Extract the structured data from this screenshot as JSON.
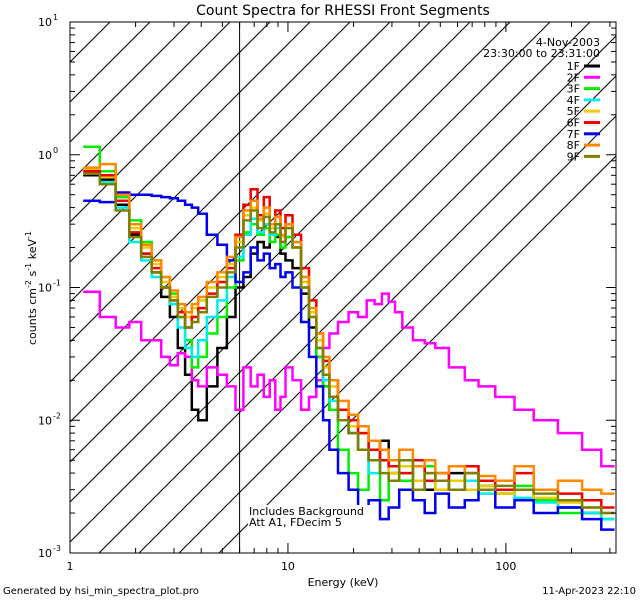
{
  "chart_data": {
    "type": "line",
    "title": "Count Spectra for RHESSI Front Segments",
    "xlabel": "Energy (keV)",
    "ylabel_parts": [
      "counts cm",
      "-2",
      " s",
      "-1",
      " keV",
      "-1"
    ],
    "xscale": "log",
    "yscale": "log",
    "xlim": [
      1,
      320
    ],
    "ylim": [
      0.001,
      10
    ],
    "x_ticks": [
      {
        "v": 1,
        "label": "1"
      },
      {
        "v": 10,
        "label": "10"
      },
      {
        "v": 100,
        "label": "100"
      }
    ],
    "y_ticks": [
      {
        "v": 10,
        "base": "10",
        "exp": "1"
      },
      {
        "v": 1,
        "base": "10",
        "exp": "0"
      },
      {
        "v": 0.1,
        "base": "10",
        "exp": "-1"
      },
      {
        "v": 0.01,
        "base": "10",
        "exp": "-2"
      },
      {
        "v": 0.001,
        "base": "10",
        "exp": "-3"
      }
    ],
    "excluded_region": [
      1,
      6
    ],
    "date": "4-Nov-2003",
    "time_range": "23:30:00 to 23:31:00",
    "annotations": [
      "Includes Background",
      "Att A1, FDecim  5"
    ],
    "footer_left": "Generated by hsi_min_spectra_plot.pro",
    "footer_right": "11-Apr-2023 22:10",
    "series": [
      {
        "name": "1F",
        "color": "#000000",
        "x": [
          1.25,
          1.5,
          1.75,
          2.0,
          2.25,
          2.5,
          2.75,
          3.0,
          3.25,
          3.5,
          3.75,
          4.0,
          4.5,
          5.0,
          5.5,
          6.0,
          6.5,
          7.0,
          7.5,
          8.0,
          8.5,
          9.0,
          9.5,
          10,
          11,
          12,
          13,
          14,
          15,
          16,
          18,
          20,
          22,
          25,
          28,
          30,
          35,
          40,
          45,
          50,
          60,
          70,
          80,
          100,
          120,
          150,
          200,
          250,
          300
        ],
        "y": [
          0.7,
          0.65,
          0.42,
          0.25,
          0.18,
          0.13,
          0.085,
          0.06,
          0.035,
          0.022,
          0.012,
          0.01,
          0.018,
          0.035,
          0.06,
          0.1,
          0.12,
          0.18,
          0.22,
          0.2,
          0.28,
          0.24,
          0.18,
          0.16,
          0.14,
          0.09,
          0.05,
          0.03,
          0.018,
          0.012,
          0.01,
          0.008,
          0.006,
          0.005,
          0.007,
          0.004,
          0.0035,
          0.0045,
          0.003,
          0.0035,
          0.004,
          0.003,
          0.0032,
          0.0028,
          0.003,
          0.0025,
          0.0022,
          0.002,
          0.0018
        ]
      },
      {
        "name": "2F",
        "color": "#ff00ff",
        "x": [
          1.25,
          1.5,
          1.75,
          2.0,
          2.25,
          2.5,
          2.75,
          3.0,
          3.25,
          3.5,
          3.75,
          4.0,
          4.5,
          5.0,
          5.5,
          6.0,
          6.5,
          7.0,
          7.5,
          8.0,
          8.5,
          9.0,
          9.5,
          10,
          11,
          12,
          13,
          14,
          15,
          16,
          18,
          20,
          22,
          24,
          26,
          28,
          30,
          32,
          35,
          40,
          45,
          50,
          60,
          70,
          80,
          100,
          120,
          150,
          200,
          250,
          300
        ],
        "y": [
          0.093,
          0.06,
          0.05,
          0.055,
          0.04,
          0.04,
          0.03,
          0.026,
          0.032,
          0.03,
          0.02,
          0.018,
          0.025,
          0.022,
          0.018,
          0.012,
          0.025,
          0.018,
          0.022,
          0.015,
          0.02,
          0.012,
          0.015,
          0.025,
          0.02,
          0.012,
          0.015,
          0.02,
          0.035,
          0.045,
          0.055,
          0.065,
          0.06,
          0.08,
          0.075,
          0.09,
          0.078,
          0.065,
          0.05,
          0.04,
          0.038,
          0.035,
          0.025,
          0.02,
          0.018,
          0.015,
          0.012,
          0.01,
          0.008,
          0.006,
          0.0045
        ]
      },
      {
        "name": "3F",
        "color": "#00ee00",
        "x": [
          1.25,
          1.5,
          1.75,
          2.0,
          2.25,
          2.5,
          2.75,
          3.0,
          3.25,
          3.5,
          3.75,
          4.0,
          4.5,
          5.0,
          5.5,
          6.0,
          6.5,
          7.0,
          7.5,
          8.0,
          8.5,
          9.0,
          9.5,
          10,
          11,
          12,
          13,
          14,
          15,
          16,
          18,
          20,
          22,
          25,
          28,
          30,
          35,
          40,
          45,
          50,
          60,
          70,
          80,
          100,
          120,
          150,
          200,
          250,
          300
        ],
        "y": [
          1.15,
          0.75,
          0.48,
          0.32,
          0.22,
          0.16,
          0.12,
          0.09,
          0.06,
          0.04,
          0.025,
          0.03,
          0.045,
          0.06,
          0.1,
          0.16,
          0.26,
          0.3,
          0.25,
          0.28,
          0.22,
          0.25,
          0.2,
          0.24,
          0.2,
          0.1,
          0.06,
          0.03,
          0.018,
          0.012,
          0.006,
          0.004,
          0.003,
          0.005,
          0.0025,
          0.004,
          0.0035,
          0.003,
          0.0045,
          0.0035,
          0.003,
          0.004,
          0.003,
          0.0028,
          0.0032,
          0.0025,
          0.002,
          0.0022,
          0.0018
        ]
      },
      {
        "name": "4F",
        "color": "#00eeee",
        "x": [
          1.25,
          1.5,
          1.75,
          2.0,
          2.25,
          2.5,
          2.75,
          3.0,
          3.25,
          3.5,
          3.75,
          4.0,
          4.5,
          5.0,
          5.5,
          6.0,
          6.5,
          7.0,
          7.5,
          8.0,
          8.5,
          9.0,
          9.5,
          10,
          11,
          12,
          13,
          14,
          15,
          16,
          18,
          20,
          22,
          25,
          28,
          30,
          35,
          40,
          45,
          50,
          60,
          70,
          80,
          100,
          120,
          150,
          200,
          250,
          300
        ],
        "y": [
          0.72,
          0.62,
          0.4,
          0.22,
          0.16,
          0.12,
          0.1,
          0.075,
          0.05,
          0.035,
          0.03,
          0.04,
          0.06,
          0.08,
          0.12,
          0.17,
          0.25,
          0.33,
          0.26,
          0.3,
          0.25,
          0.28,
          0.22,
          0.3,
          0.22,
          0.12,
          0.07,
          0.035,
          0.02,
          0.014,
          0.01,
          0.008,
          0.006,
          0.004,
          0.005,
          0.0035,
          0.004,
          0.003,
          0.0035,
          0.004,
          0.003,
          0.0035,
          0.0028,
          0.003,
          0.0026,
          0.0024,
          0.0022,
          0.002,
          0.0018
        ]
      },
      {
        "name": "5F",
        "color": "#eecc00",
        "x": [
          1.25,
          1.5,
          1.75,
          2.0,
          2.25,
          2.5,
          2.75,
          3.0,
          3.25,
          3.5,
          3.75,
          4.0,
          4.5,
          5.0,
          5.5,
          6.0,
          6.5,
          7.0,
          7.5,
          8.0,
          8.5,
          9.0,
          9.5,
          10,
          11,
          12,
          13,
          14,
          15,
          16,
          18,
          20,
          22,
          25,
          28,
          30,
          35,
          40,
          45,
          50,
          60,
          70,
          80,
          100,
          120,
          150,
          200,
          250,
          300
        ],
        "y": [
          0.78,
          0.68,
          0.45,
          0.28,
          0.2,
          0.15,
          0.11,
          0.085,
          0.07,
          0.06,
          0.07,
          0.08,
          0.1,
          0.12,
          0.15,
          0.22,
          0.35,
          0.4,
          0.32,
          0.36,
          0.28,
          0.3,
          0.24,
          0.28,
          0.2,
          0.11,
          0.065,
          0.04,
          0.025,
          0.018,
          0.012,
          0.009,
          0.008,
          0.006,
          0.005,
          0.004,
          0.0045,
          0.0035,
          0.004,
          0.003,
          0.0035,
          0.003,
          0.0032,
          0.0028,
          0.003,
          0.0026,
          0.0024,
          0.0022,
          0.002
        ]
      },
      {
        "name": "6F",
        "color": "#ee0000",
        "x": [
          1.25,
          1.5,
          1.75,
          2.0,
          2.25,
          2.5,
          2.75,
          3.0,
          3.25,
          3.5,
          3.75,
          4.0,
          4.5,
          5.0,
          5.5,
          6.0,
          6.5,
          7.0,
          7.5,
          8.0,
          8.5,
          9.0,
          9.5,
          10,
          11,
          12,
          13,
          14,
          15,
          16,
          18,
          20,
          22,
          25,
          28,
          30,
          35,
          40,
          45,
          50,
          60,
          70,
          80,
          100,
          120,
          150,
          200,
          250,
          300
        ],
        "y": [
          0.75,
          0.7,
          0.45,
          0.26,
          0.18,
          0.14,
          0.1,
          0.08,
          0.065,
          0.05,
          0.06,
          0.07,
          0.09,
          0.11,
          0.14,
          0.25,
          0.42,
          0.55,
          0.35,
          0.48,
          0.3,
          0.38,
          0.28,
          0.35,
          0.25,
          0.14,
          0.08,
          0.045,
          0.028,
          0.02,
          0.012,
          0.01,
          0.008,
          0.006,
          0.005,
          0.0045,
          0.004,
          0.005,
          0.0035,
          0.004,
          0.003,
          0.0045,
          0.0035,
          0.003,
          0.004,
          0.003,
          0.0028,
          0.0025,
          0.0022
        ]
      },
      {
        "name": "7F",
        "color": "#0000ee",
        "x": [
          1.25,
          1.5,
          1.75,
          2.0,
          2.25,
          2.5,
          2.75,
          3.0,
          3.25,
          3.5,
          3.75,
          4.0,
          4.5,
          5.0,
          5.5,
          6.0,
          6.5,
          7.0,
          7.5,
          8.0,
          8.5,
          9.0,
          9.5,
          10,
          11,
          12,
          13,
          14,
          15,
          16,
          18,
          20,
          22,
          25,
          28,
          30,
          35,
          40,
          45,
          50,
          60,
          70,
          80,
          100,
          120,
          150,
          200,
          250,
          300
        ],
        "y": [
          0.45,
          0.44,
          0.52,
          0.5,
          0.5,
          0.49,
          0.48,
          0.47,
          0.45,
          0.42,
          0.4,
          0.36,
          0.25,
          0.21,
          0.16,
          0.11,
          0.13,
          0.2,
          0.16,
          0.18,
          0.14,
          0.15,
          0.12,
          0.13,
          0.1,
          0.055,
          0.03,
          0.018,
          0.01,
          0.006,
          0.004,
          0.003,
          0.002,
          0.0025,
          0.0018,
          0.0022,
          0.003,
          0.0025,
          0.002,
          0.0028,
          0.0022,
          0.0025,
          0.003,
          0.0022,
          0.0025,
          0.002,
          0.0022,
          0.0018,
          0.0015
        ]
      },
      {
        "name": "8F",
        "color": "#ff8800",
        "x": [
          1.25,
          1.5,
          1.75,
          2.0,
          2.25,
          2.5,
          2.75,
          3.0,
          3.25,
          3.5,
          3.75,
          4.0,
          4.5,
          5.0,
          5.5,
          6.0,
          6.5,
          7.0,
          7.5,
          8.0,
          8.5,
          9.0,
          9.5,
          10,
          11,
          12,
          13,
          14,
          15,
          16,
          18,
          20,
          22,
          25,
          28,
          30,
          35,
          40,
          45,
          50,
          60,
          70,
          80,
          100,
          120,
          150,
          200,
          250,
          300
        ],
        "y": [
          0.8,
          0.85,
          0.5,
          0.3,
          0.21,
          0.16,
          0.12,
          0.095,
          0.075,
          0.065,
          0.075,
          0.085,
          0.11,
          0.13,
          0.17,
          0.24,
          0.38,
          0.45,
          0.33,
          0.4,
          0.3,
          0.34,
          0.25,
          0.3,
          0.22,
          0.12,
          0.07,
          0.045,
          0.03,
          0.02,
          0.014,
          0.011,
          0.009,
          0.007,
          0.006,
          0.005,
          0.006,
          0.0045,
          0.005,
          0.004,
          0.0045,
          0.004,
          0.0038,
          0.0035,
          0.0045,
          0.003,
          0.0035,
          0.003,
          0.0028
        ]
      },
      {
        "name": "9F",
        "color": "#808000",
        "x": [
          1.25,
          1.5,
          1.75,
          2.0,
          2.25,
          2.5,
          2.75,
          3.0,
          3.25,
          3.5,
          3.75,
          4.0,
          4.5,
          5.0,
          5.5,
          6.0,
          6.5,
          7.0,
          7.5,
          8.0,
          8.5,
          9.0,
          9.5,
          10,
          11,
          12,
          13,
          14,
          15,
          16,
          18,
          20,
          22,
          25,
          28,
          30,
          35,
          40,
          45,
          50,
          60,
          70,
          80,
          100,
          120,
          150,
          200,
          250,
          300
        ],
        "y": [
          0.72,
          0.6,
          0.38,
          0.24,
          0.17,
          0.13,
          0.1,
          0.08,
          0.06,
          0.05,
          0.055,
          0.065,
          0.085,
          0.1,
          0.13,
          0.2,
          0.32,
          0.38,
          0.28,
          0.34,
          0.26,
          0.3,
          0.22,
          0.28,
          0.2,
          0.1,
          0.06,
          0.035,
          0.022,
          0.015,
          0.01,
          0.008,
          0.006,
          0.005,
          0.004,
          0.0035,
          0.005,
          0.003,
          0.004,
          0.0035,
          0.003,
          0.004,
          0.003,
          0.0032,
          0.003,
          0.0028,
          0.0025,
          0.0022,
          0.002
        ]
      }
    ]
  }
}
